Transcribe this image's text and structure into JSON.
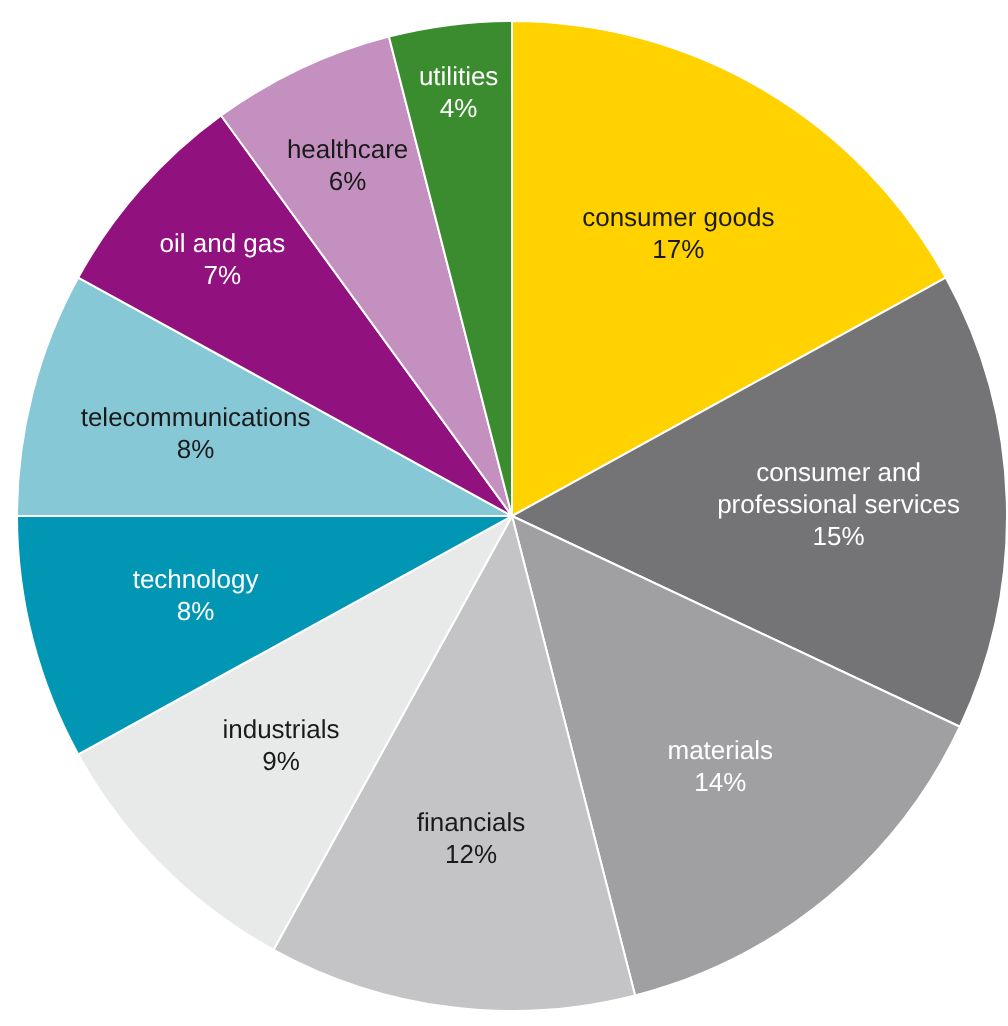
{
  "chart_data": {
    "type": "pie",
    "categories": [
      "consumer goods",
      "consumer and professional services",
      "materials",
      "financials",
      "industrials",
      "technology",
      "telecommunications",
      "oil and gas",
      "healthcare",
      "utilities"
    ],
    "values": [
      17,
      15,
      14,
      12,
      9,
      8,
      8,
      7,
      6,
      4
    ],
    "colors": [
      "#ffd200",
      "#747476",
      "#a0a0a2",
      "#c4c4c6",
      "#e8e9e9",
      "#0096b4",
      "#87c8d6",
      "#91117f",
      "#c490c0",
      "#3a8c2e"
    ],
    "value_labels": [
      "17%",
      "15%",
      "14%",
      "12%",
      "9%",
      "8%",
      "8%",
      "7%",
      "6%",
      "4%"
    ],
    "legend": false
  }
}
